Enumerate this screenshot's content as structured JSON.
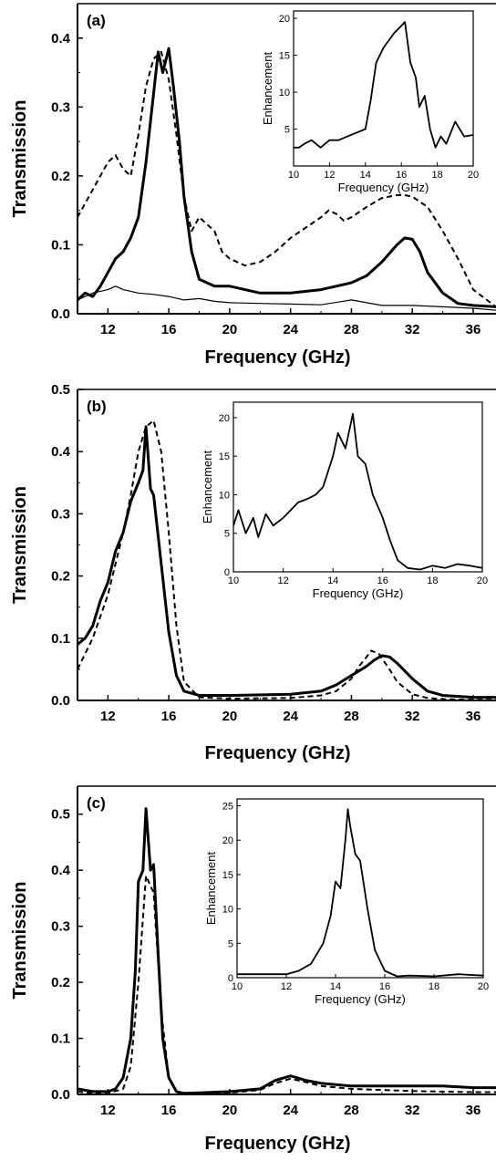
{
  "figure": {
    "panels": [
      {
        "label": "(a)",
        "xlabel": "Frequency (GHz)",
        "ylabel": "Transmission",
        "xlim": [
          10,
          37.5
        ],
        "ylim": [
          0,
          0.45
        ],
        "xticks": [
          12,
          16,
          20,
          24,
          28,
          32,
          36
        ],
        "yticks": [
          0.0,
          0.1,
          0.2,
          0.3,
          0.4
        ],
        "inset": {
          "xlabel": "Frequency (GHz)",
          "ylabel": "Enhancement",
          "xlim": [
            10,
            20
          ],
          "ylim": [
            0,
            21
          ],
          "xticks": [
            10,
            12,
            14,
            16,
            18,
            20
          ],
          "yticks": [
            5,
            10,
            15,
            20
          ]
        }
      },
      {
        "label": "(b)",
        "xlabel": "Frequency (GHz)",
        "ylabel": "Transmission",
        "xlim": [
          10,
          37.5
        ],
        "ylim": [
          0,
          0.5
        ],
        "xticks": [
          12,
          16,
          20,
          24,
          28,
          32,
          36
        ],
        "yticks": [
          0.0,
          0.1,
          0.2,
          0.3,
          0.4,
          0.5
        ],
        "inset": {
          "xlabel": "Frequency (GHz)",
          "ylabel": "Enhancement",
          "xlim": [
            10,
            20
          ],
          "ylim": [
            0,
            22
          ],
          "xticks": [
            10,
            12,
            14,
            16,
            18,
            20
          ],
          "yticks": [
            0,
            5,
            10,
            15,
            20
          ]
        }
      },
      {
        "label": "(c)",
        "xlabel": "Frequency (GHz)",
        "ylabel": "Transmission",
        "xlim": [
          10,
          37.5
        ],
        "ylim": [
          0,
          0.55
        ],
        "xticks": [
          12,
          16,
          20,
          24,
          28,
          32,
          36
        ],
        "yticks": [
          0.0,
          0.1,
          0.2,
          0.3,
          0.4,
          0.5
        ],
        "inset": {
          "xlabel": "Frequency (GHz)",
          "ylabel": "Enhancement",
          "xlim": [
            10,
            20
          ],
          "ylim": [
            0,
            26
          ],
          "xticks": [
            10,
            12,
            14,
            16,
            18,
            20
          ],
          "yticks": [
            0,
            5,
            10,
            15,
            20,
            25
          ]
        }
      }
    ]
  },
  "chart_data": [
    {
      "type": "line",
      "title": "",
      "xlabel": "Frequency (GHz)",
      "ylabel": "Transmission",
      "xlim": [
        10,
        37.5
      ],
      "ylim": [
        0,
        0.45
      ],
      "grid": false,
      "series": [
        {
          "style": "thick-solid",
          "x": [
            10,
            10.5,
            11,
            11.5,
            12,
            12.5,
            13,
            13.5,
            14,
            14.5,
            15,
            15.3,
            15.6,
            16,
            16.3,
            16.7,
            17,
            17.5,
            18,
            18.5,
            19,
            20,
            22,
            24,
            26,
            28,
            29,
            30,
            31,
            31.5,
            32,
            32.5,
            33,
            34,
            35,
            36,
            37.5
          ],
          "y": [
            0.02,
            0.03,
            0.025,
            0.04,
            0.06,
            0.08,
            0.09,
            0.11,
            0.14,
            0.22,
            0.32,
            0.38,
            0.35,
            0.385,
            0.33,
            0.25,
            0.17,
            0.09,
            0.05,
            0.045,
            0.04,
            0.04,
            0.03,
            0.03,
            0.035,
            0.045,
            0.055,
            0.075,
            0.1,
            0.11,
            0.108,
            0.09,
            0.06,
            0.03,
            0.015,
            0.012,
            0.01
          ]
        },
        {
          "style": "dashed",
          "x": [
            10,
            11,
            12,
            12.5,
            13,
            13.5,
            14,
            14.5,
            15,
            15.5,
            16,
            16.5,
            17,
            17.5,
            18,
            18.5,
            19,
            19.5,
            20,
            21,
            22,
            23,
            24,
            25,
            26,
            26.5,
            27,
            27.5,
            28,
            29,
            30,
            31,
            31.5,
            32,
            33,
            34,
            35,
            36,
            37.5
          ],
          "y": [
            0.14,
            0.18,
            0.22,
            0.23,
            0.21,
            0.2,
            0.26,
            0.33,
            0.37,
            0.38,
            0.34,
            0.26,
            0.17,
            0.12,
            0.14,
            0.13,
            0.12,
            0.09,
            0.08,
            0.07,
            0.075,
            0.09,
            0.11,
            0.125,
            0.14,
            0.15,
            0.145,
            0.135,
            0.14,
            0.155,
            0.168,
            0.172,
            0.172,
            0.17,
            0.155,
            0.12,
            0.08,
            0.035,
            0.01
          ]
        },
        {
          "style": "thin-solid",
          "x": [
            10,
            11,
            12,
            12.5,
            13,
            14,
            15,
            16,
            17,
            18,
            19,
            20,
            22,
            24,
            26,
            28,
            30,
            32,
            34,
            36,
            37.5
          ],
          "y": [
            0.02,
            0.03,
            0.035,
            0.04,
            0.035,
            0.03,
            0.028,
            0.025,
            0.02,
            0.022,
            0.018,
            0.016,
            0.015,
            0.014,
            0.013,
            0.02,
            0.012,
            0.012,
            0.01,
            0.008,
            0.005
          ]
        }
      ],
      "inset": {
        "type": "line",
        "xlabel": "Frequency (GHz)",
        "ylabel": "Enhancement",
        "xlim": [
          10,
          20
        ],
        "ylim": [
          0,
          21
        ],
        "series": [
          {
            "style": "solid",
            "x": [
              10,
              10.3,
              10.6,
              11,
              11.5,
              12,
              12.5,
              13,
              13.5,
              14,
              14.3,
              14.6,
              15,
              15.3,
              15.6,
              16,
              16.2,
              16.5,
              16.8,
              17,
              17.3,
              17.6,
              17.9,
              18.2,
              18.5,
              19,
              19.5,
              20
            ],
            "y": [
              2.5,
              2.5,
              3,
              3.5,
              2.5,
              3.5,
              3.5,
              4,
              4.5,
              5,
              9,
              14,
              16,
              17,
              18,
              19,
              19.5,
              14,
              12,
              8,
              9.5,
              5,
              2.5,
              4,
              3,
              6,
              4,
              4.2
            ]
          }
        ]
      }
    },
    {
      "type": "line",
      "title": "",
      "xlabel": "Frequency (GHz)",
      "ylabel": "Transmission",
      "xlim": [
        10,
        37.5
      ],
      "ylim": [
        0,
        0.5
      ],
      "grid": false,
      "series": [
        {
          "style": "thick-solid",
          "x": [
            10,
            10.5,
            11,
            11.5,
            12,
            12.5,
            13,
            13.5,
            14,
            14.3,
            14.5,
            14.8,
            15,
            15.5,
            16,
            16.5,
            17,
            18,
            20,
            24,
            26,
            27,
            28,
            29,
            29.5,
            30,
            30.5,
            31,
            32,
            33,
            34,
            36,
            37.5
          ],
          "y": [
            0.09,
            0.1,
            0.12,
            0.16,
            0.19,
            0.24,
            0.27,
            0.32,
            0.35,
            0.37,
            0.44,
            0.34,
            0.33,
            0.22,
            0.11,
            0.04,
            0.015,
            0.008,
            0.008,
            0.01,
            0.015,
            0.025,
            0.04,
            0.055,
            0.065,
            0.072,
            0.07,
            0.06,
            0.035,
            0.015,
            0.008,
            0.005,
            0.005
          ]
        },
        {
          "style": "dashed",
          "x": [
            10,
            11,
            12,
            13,
            13.5,
            14,
            14.5,
            15,
            15.5,
            16,
            16.5,
            17,
            18,
            20,
            24,
            26,
            27,
            28,
            28.5,
            29,
            29.3,
            29.8,
            30.5,
            31,
            32,
            33,
            34,
            36,
            37.5
          ],
          "y": [
            0.05,
            0.1,
            0.17,
            0.27,
            0.33,
            0.4,
            0.44,
            0.45,
            0.4,
            0.27,
            0.12,
            0.03,
            0.005,
            0.003,
            0.004,
            0.008,
            0.015,
            0.035,
            0.055,
            0.07,
            0.08,
            0.075,
            0.05,
            0.03,
            0.01,
            0.004,
            0.002,
            0.001,
            0.001
          ]
        }
      ],
      "inset": {
        "type": "line",
        "xlabel": "Frequency (GHz)",
        "ylabel": "Enhancement",
        "xlim": [
          10,
          20
        ],
        "ylim": [
          0,
          22
        ],
        "series": [
          {
            "style": "solid",
            "x": [
              10,
              10.2,
              10.5,
              10.8,
              11,
              11.3,
              11.6,
              12,
              12.3,
              12.6,
              13,
              13.3,
              13.6,
              14,
              14.2,
              14.5,
              14.8,
              15,
              15.3,
              15.6,
              16,
              16.3,
              16.6,
              17,
              17.5,
              18,
              18.5,
              19,
              19.5,
              20
            ],
            "y": [
              6,
              8,
              5,
              7,
              4.5,
              7.5,
              6,
              7,
              8,
              9,
              9.5,
              10,
              11,
              15,
              18,
              16,
              20.5,
              15,
              14,
              10,
              7,
              4,
              1.5,
              0.5,
              0.3,
              0.8,
              0.5,
              1,
              0.8,
              0.5
            ]
          }
        ]
      }
    },
    {
      "type": "line",
      "title": "",
      "xlabel": "Frequency (GHz)",
      "ylabel": "Transmission",
      "xlim": [
        10,
        37.5
      ],
      "ylim": [
        0,
        0.55
      ],
      "grid": false,
      "series": [
        {
          "style": "thick-solid",
          "x": [
            10,
            11,
            12,
            12.5,
            13,
            13.5,
            13.8,
            14,
            14.3,
            14.5,
            14.8,
            15,
            15.3,
            15.6,
            16,
            16.5,
            17,
            18,
            20,
            22,
            23,
            24,
            25,
            26,
            28,
            30,
            32,
            34,
            36,
            37.5
          ],
          "y": [
            0.01,
            0.005,
            0.005,
            0.01,
            0.03,
            0.1,
            0.22,
            0.38,
            0.4,
            0.51,
            0.4,
            0.41,
            0.25,
            0.1,
            0.03,
            0.005,
            0.002,
            0.003,
            0.005,
            0.01,
            0.025,
            0.033,
            0.025,
            0.02,
            0.015,
            0.015,
            0.015,
            0.015,
            0.012,
            0.012
          ]
        },
        {
          "style": "dashed",
          "x": [
            10,
            11,
            12,
            13,
            13.5,
            14,
            14.5,
            15,
            15.5,
            16,
            16.5,
            17,
            18,
            20,
            22,
            23,
            24,
            25,
            26,
            28,
            30,
            32,
            34,
            36,
            37.5
          ],
          "y": [
            0.005,
            0.002,
            0.002,
            0.01,
            0.05,
            0.2,
            0.39,
            0.36,
            0.15,
            0.03,
            0.005,
            0.001,
            0.001,
            0.003,
            0.008,
            0.02,
            0.028,
            0.022,
            0.015,
            0.01,
            0.008,
            0.006,
            0.005,
            0.004,
            0.004
          ]
        }
      ],
      "inset": {
        "type": "line",
        "xlabel": "Frequency (GHz)",
        "ylabel": "Enhancement",
        "xlim": [
          10,
          20
        ],
        "ylim": [
          0,
          26
        ],
        "series": [
          {
            "style": "solid",
            "x": [
              10,
              11,
              12,
              12.5,
              13,
              13.5,
              13.8,
              14,
              14.2,
              14.4,
              14.5,
              14.6,
              14.8,
              15,
              15.3,
              15.6,
              16,
              16.5,
              17,
              18,
              19,
              20
            ],
            "y": [
              0.5,
              0.5,
              0.5,
              1,
              2,
              5,
              9,
              14,
              13,
              20,
              24.5,
              22,
              18,
              17,
              10,
              4,
              1,
              0.2,
              0.3,
              0.2,
              0.5,
              0.3
            ]
          }
        ]
      }
    }
  ]
}
